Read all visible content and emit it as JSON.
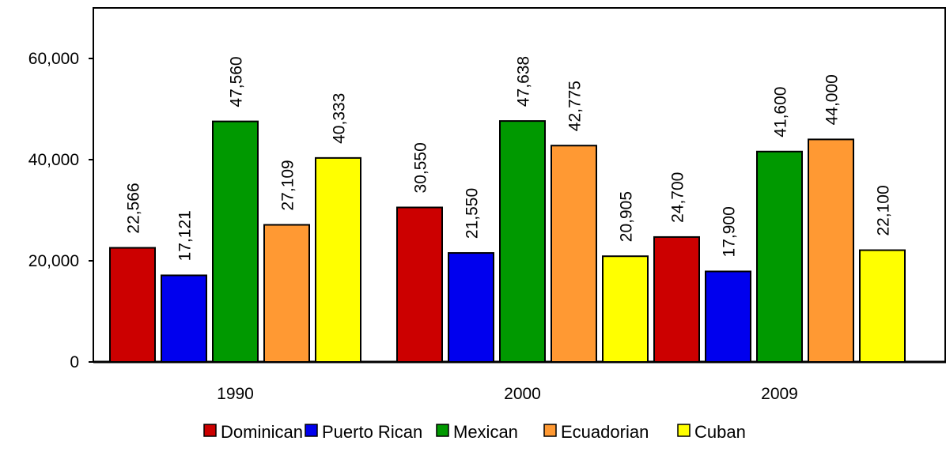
{
  "chart_data": {
    "type": "bar",
    "title": "",
    "xlabel": "",
    "ylabel": "",
    "categories": [
      "1990",
      "2000",
      "2009"
    ],
    "ylim": [
      0,
      70000
    ],
    "yticks": [
      0,
      20000,
      40000,
      60000
    ],
    "ytick_labels": [
      "0",
      "20,000",
      "40,000",
      "60,000"
    ],
    "grid": false,
    "legend_position": "bottom",
    "series": [
      {
        "name": "Dominican",
        "color": "#cc0000",
        "values": [
          22566,
          30550,
          24700
        ],
        "labels": [
          "22,566",
          "30,550",
          "24,700"
        ]
      },
      {
        "name": "Puerto Rican",
        "color": "#0000ee",
        "values": [
          17121,
          21550,
          17900
        ],
        "labels": [
          "17,121",
          "21,550",
          "17,900"
        ]
      },
      {
        "name": "Mexican",
        "color": "#009900",
        "values": [
          47560,
          47638,
          41600
        ],
        "labels": [
          "47,560",
          "47,638",
          "41,600"
        ]
      },
      {
        "name": "Ecuadorian",
        "color": "#ff9933",
        "values": [
          27109,
          42775,
          44000
        ],
        "labels": [
          "27,109",
          "42,775",
          "44,000"
        ]
      },
      {
        "name": "Cuban",
        "color": "#ffff00",
        "values": [
          40333,
          20905,
          22100
        ],
        "labels": [
          "40,333",
          "20,905",
          "22,100"
        ]
      }
    ]
  }
}
